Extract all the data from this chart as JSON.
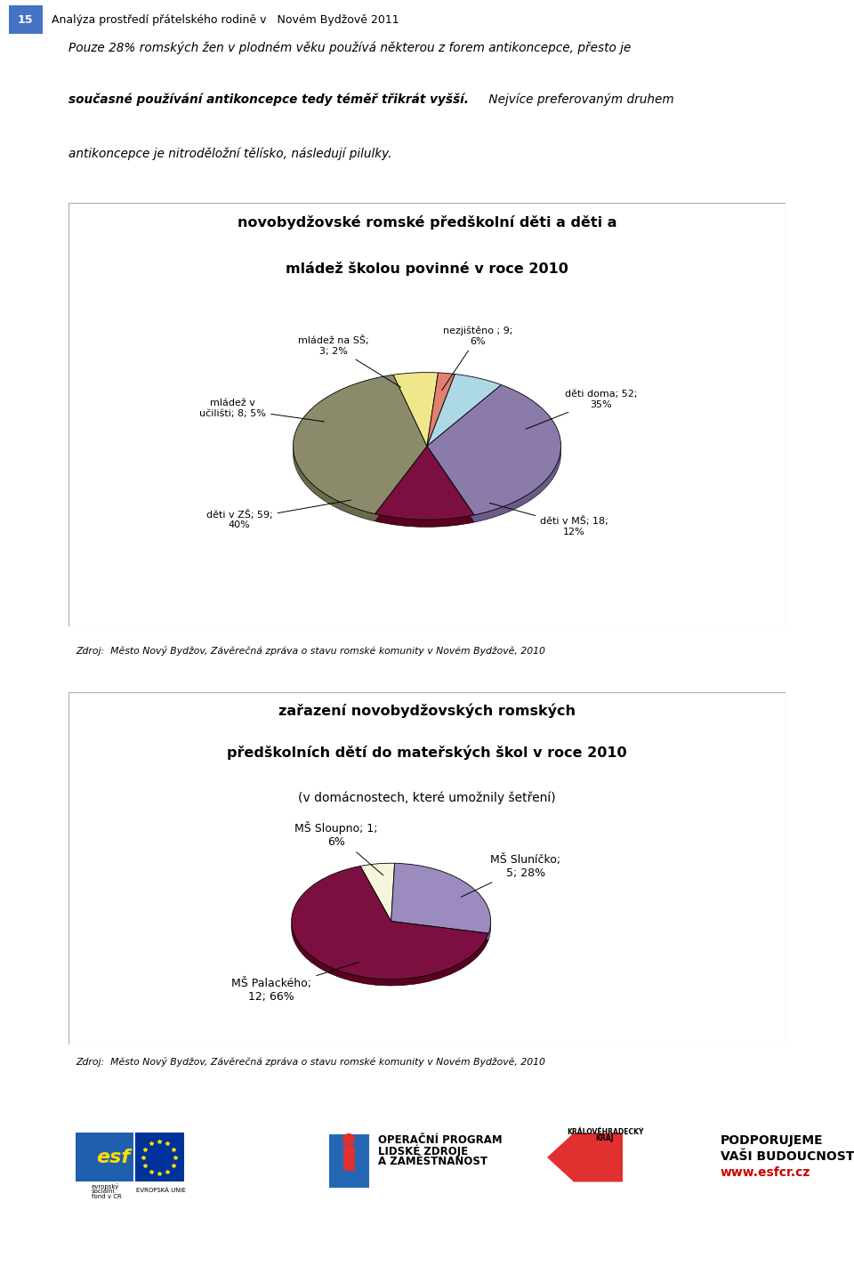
{
  "page_title_num": "15",
  "page_title_text": "Analýza prostředí přátelského rodině v   Novém Bydžově 2011",
  "para1": "Pouze 28% romských žen v plodném věku používá některou z forem antikoncepce, přesto je",
  "para2a": "současné používání antikoncepce tedy téměř třikrát vyšší.",
  "para2b": " Nejvíce preferovaným druhem",
  "para3": "antikoncepce je nitroděložní tělísko, následují pilulky.",
  "chart1_title1": "novobydžovské romské předškolní děti a děti a",
  "chart1_title2": "mládež školou povinné v roce 2010",
  "chart1_values": [
    9,
    52,
    18,
    59,
    8,
    3
  ],
  "chart1_colors": [
    "#ADD8E6",
    "#8B7BAA",
    "#7B1040",
    "#8B8B6B",
    "#F0E68C",
    "#E08070"
  ],
  "chart1_shadow_colors": [
    "#7BAABB",
    "#6B5B8A",
    "#5B0020",
    "#6B6B4B",
    "#C0B66C",
    "#B06050"
  ],
  "chart1_startangle": 78,
  "chart2_title1": "zařazení novobydžovských romských",
  "chart2_title2": "předškolních dětí do mateřských škol v roce 2010",
  "chart2_title3": "(v domácnostech, které umožnily šetření)",
  "chart2_values": [
    1,
    5,
    12
  ],
  "chart2_colors": [
    "#F5F5DC",
    "#9B8BBF",
    "#7B1040"
  ],
  "chart2_shadow_colors": [
    "#C5C5AC",
    "#7B6B9F",
    "#5B0020"
  ],
  "chart2_startangle": 108,
  "source_text": "Zdroj:  Město Nový Bydžov, Závěrečná zpráva o stavu romské komunity v Novém Bydžově, 2010",
  "bg_color": "#FFFFFF",
  "border_color": "#AAAAAA"
}
